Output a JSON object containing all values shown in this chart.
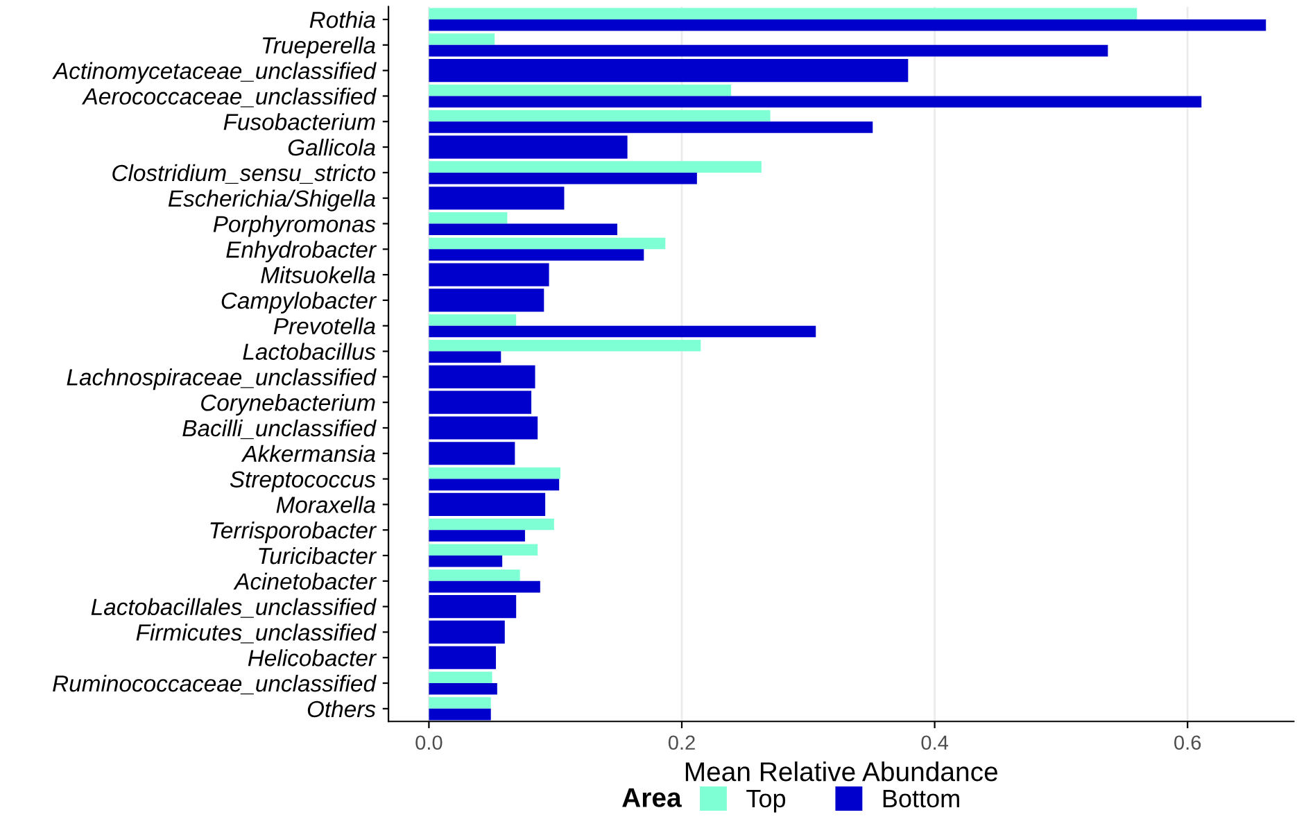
{
  "chart_data": {
    "type": "bar",
    "orientation": "horizontal",
    "xlabel": "Mean Relative Abundance",
    "legend_title": "Area",
    "legend": "bottom",
    "grid": "x",
    "categories": [
      "Rothia",
      "Trueperella",
      "Actinomycetaceae_unclassified",
      "Aerococcaceae_unclassified",
      "Fusobacterium",
      "Gallicola",
      "Clostridium_sensu_stricto",
      "Escherichia/Shigella",
      "Porphyromonas",
      "Enhydrobacter",
      "Mitsuokella",
      "Campylobacter",
      "Prevotella",
      "Lactobacillus",
      "Lachnospiraceae_unclassified",
      "Corynebacterium",
      "Bacilli_unclassified",
      "Akkermansia",
      "Streptococcus",
      "Moraxella",
      "Terrisporobacter",
      "Turicibacter",
      "Acinetobacter",
      "Lactobacillales_unclassified",
      "Firmicutes_unclassified",
      "Helicobacter",
      "Ruminococcaceae_unclassified",
      "Others"
    ],
    "xlim": [
      -0.032,
      0.684
    ],
    "xticks": [
      {
        "value": 0,
        "label": "0.0"
      },
      0.2,
      0.4,
      0.6
    ],
    "series": [
      {
        "name": "Top",
        "color": "#7fffd4",
        "values": [
          0.56,
          0.052,
          null,
          0.239,
          0.27,
          null,
          0.263,
          null,
          0.062,
          0.187,
          null,
          null,
          0.069,
          0.215,
          null,
          null,
          null,
          null,
          0.104,
          null,
          0.099,
          0.086,
          0.072,
          null,
          null,
          null,
          0.05,
          0.049
        ]
      },
      {
        "name": "Bottom",
        "color": "#0000cd",
        "values": [
          0.662,
          0.537,
          0.379,
          0.611,
          0.351,
          0.157,
          0.212,
          0.107,
          0.149,
          0.17,
          0.095,
          0.091,
          0.306,
          0.057,
          0.084,
          0.081,
          0.086,
          0.068,
          0.103,
          0.092,
          0.076,
          0.058,
          0.088,
          0.069,
          0.06,
          0.053,
          0.054,
          0.049
        ]
      }
    ]
  }
}
